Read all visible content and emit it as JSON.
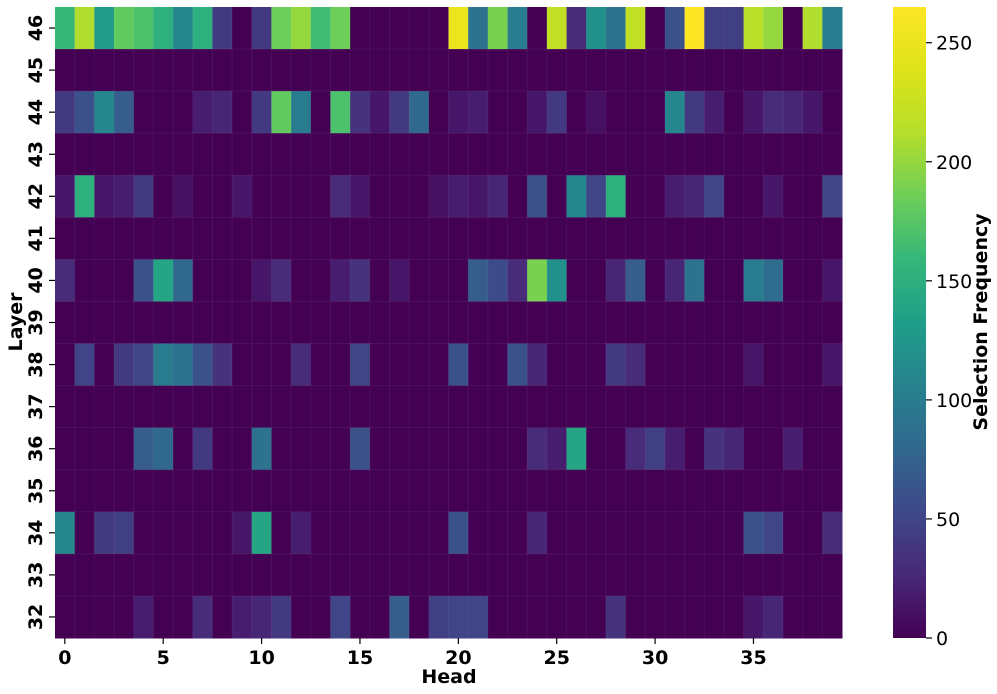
{
  "chart_data": {
    "type": "heatmap",
    "xlabel": "Head",
    "ylabel": "Layer",
    "colorbar_label": "Selection Frequency",
    "colormap": "viridis",
    "vmin": 0,
    "vmax": 265,
    "x_categories": [
      0,
      1,
      2,
      3,
      4,
      5,
      6,
      7,
      8,
      9,
      10,
      11,
      12,
      13,
      14,
      15,
      16,
      17,
      18,
      19,
      20,
      21,
      22,
      23,
      24,
      25,
      26,
      27,
      28,
      29,
      30,
      31,
      32,
      33,
      34,
      35,
      36,
      37,
      38,
      39
    ],
    "x_tick_labels": [
      "0",
      "5",
      "10",
      "15",
      "20",
      "25",
      "30",
      "35"
    ],
    "x_tick_values": [
      0,
      5,
      10,
      15,
      20,
      25,
      30,
      35
    ],
    "y_categories": [
      46,
      45,
      44,
      43,
      42,
      41,
      40,
      39,
      38,
      37,
      36,
      35,
      34,
      33,
      32
    ],
    "colorbar_ticks": [
      0,
      50,
      100,
      150,
      200,
      250
    ],
    "rows": [
      {
        "layer": 46,
        "values": [
          160,
          210,
          130,
          180,
          170,
          150,
          110,
          150,
          40,
          0,
          40,
          185,
          200,
          165,
          185,
          0,
          0,
          0,
          0,
          0,
          250,
          90,
          190,
          100,
          0,
          220,
          30,
          120,
          90,
          220,
          0,
          60,
          265,
          45,
          45,
          215,
          200,
          0,
          210,
          100
        ]
      },
      {
        "layer": 45,
        "values": [
          0,
          0,
          0,
          0,
          0,
          0,
          0,
          0,
          0,
          0,
          0,
          0,
          0,
          0,
          0,
          0,
          0,
          0,
          0,
          0,
          0,
          0,
          0,
          0,
          0,
          0,
          0,
          0,
          0,
          0,
          0,
          0,
          0,
          0,
          0,
          0,
          0,
          0,
          0,
          0
        ]
      },
      {
        "layer": 44,
        "values": [
          40,
          60,
          110,
          70,
          0,
          0,
          0,
          20,
          25,
          0,
          40,
          180,
          100,
          0,
          170,
          35,
          15,
          40,
          80,
          0,
          15,
          20,
          0,
          0,
          15,
          40,
          0,
          10,
          0,
          0,
          0,
          110,
          40,
          20,
          0,
          15,
          30,
          25,
          15,
          0
        ]
      },
      {
        "layer": 43,
        "values": [
          0,
          0,
          0,
          0,
          0,
          0,
          0,
          0,
          0,
          0,
          0,
          0,
          0,
          0,
          0,
          0,
          0,
          0,
          0,
          0,
          0,
          0,
          0,
          0,
          0,
          0,
          0,
          0,
          0,
          0,
          0,
          0,
          0,
          0,
          0,
          0,
          0,
          0,
          0,
          0
        ]
      },
      {
        "layer": 42,
        "values": [
          15,
          150,
          15,
          20,
          40,
          0,
          10,
          0,
          0,
          15,
          0,
          0,
          0,
          0,
          30,
          15,
          0,
          0,
          0,
          10,
          20,
          15,
          25,
          0,
          60,
          0,
          110,
          50,
          150,
          0,
          0,
          20,
          25,
          50,
          0,
          0,
          15,
          0,
          0,
          50
        ]
      },
      {
        "layer": 41,
        "values": [
          0,
          0,
          0,
          0,
          0,
          0,
          0,
          0,
          0,
          0,
          0,
          0,
          0,
          0,
          0,
          0,
          0,
          0,
          0,
          0,
          0,
          0,
          0,
          0,
          0,
          0,
          0,
          0,
          0,
          0,
          0,
          0,
          0,
          0,
          0,
          0,
          0,
          0,
          0,
          0
        ]
      },
      {
        "layer": 40,
        "values": [
          30,
          0,
          0,
          0,
          60,
          140,
          80,
          0,
          0,
          0,
          15,
          30,
          0,
          0,
          20,
          35,
          0,
          15,
          0,
          0,
          0,
          70,
          55,
          30,
          190,
          120,
          0,
          0,
          25,
          70,
          0,
          25,
          90,
          0,
          0,
          100,
          85,
          0,
          0,
          15
        ]
      },
      {
        "layer": 39,
        "values": [
          0,
          0,
          0,
          0,
          0,
          0,
          0,
          0,
          0,
          0,
          0,
          0,
          0,
          0,
          0,
          0,
          0,
          0,
          0,
          0,
          0,
          0,
          0,
          0,
          0,
          0,
          0,
          0,
          0,
          0,
          0,
          0,
          0,
          0,
          0,
          0,
          0,
          0,
          0,
          0
        ]
      },
      {
        "layer": 38,
        "values": [
          0,
          50,
          0,
          40,
          50,
          100,
          90,
          60,
          35,
          0,
          0,
          0,
          30,
          0,
          0,
          50,
          0,
          0,
          0,
          0,
          60,
          0,
          0,
          60,
          25,
          0,
          0,
          0,
          40,
          30,
          0,
          0,
          0,
          0,
          0,
          15,
          0,
          0,
          0,
          15
        ]
      },
      {
        "layer": 37,
        "values": [
          0,
          0,
          0,
          0,
          0,
          0,
          0,
          0,
          0,
          0,
          0,
          0,
          0,
          0,
          0,
          0,
          0,
          0,
          0,
          0,
          0,
          0,
          0,
          0,
          0,
          0,
          0,
          0,
          0,
          0,
          0,
          0,
          0,
          0,
          0,
          0,
          0,
          0,
          0,
          0
        ]
      },
      {
        "layer": 36,
        "values": [
          0,
          0,
          0,
          0,
          70,
          80,
          0,
          40,
          0,
          0,
          90,
          0,
          0,
          0,
          0,
          60,
          0,
          0,
          0,
          0,
          0,
          0,
          0,
          0,
          30,
          20,
          140,
          0,
          0,
          30,
          45,
          20,
          0,
          35,
          25,
          0,
          0,
          20,
          0,
          0
        ]
      },
      {
        "layer": 35,
        "values": [
          0,
          0,
          0,
          0,
          0,
          0,
          0,
          0,
          0,
          0,
          0,
          0,
          0,
          0,
          0,
          0,
          0,
          0,
          0,
          0,
          0,
          0,
          0,
          0,
          0,
          0,
          0,
          0,
          0,
          0,
          0,
          0,
          0,
          0,
          0,
          0,
          0,
          0,
          0,
          0
        ]
      },
      {
        "layer": 34,
        "values": [
          110,
          0,
          40,
          45,
          0,
          0,
          0,
          0,
          0,
          15,
          140,
          0,
          20,
          0,
          0,
          0,
          0,
          0,
          0,
          0,
          60,
          0,
          0,
          0,
          25,
          0,
          0,
          0,
          0,
          0,
          0,
          0,
          0,
          0,
          0,
          60,
          50,
          0,
          0,
          30
        ]
      },
      {
        "layer": 33,
        "values": [
          0,
          0,
          0,
          0,
          0,
          0,
          0,
          0,
          0,
          0,
          0,
          0,
          0,
          0,
          0,
          0,
          0,
          0,
          0,
          0,
          0,
          0,
          0,
          0,
          0,
          0,
          0,
          0,
          0,
          0,
          0,
          0,
          0,
          0,
          0,
          0,
          0,
          0,
          0,
          0
        ]
      },
      {
        "layer": 32,
        "values": [
          0,
          0,
          0,
          0,
          20,
          0,
          0,
          30,
          0,
          20,
          25,
          40,
          0,
          0,
          50,
          0,
          0,
          70,
          0,
          45,
          50,
          50,
          0,
          0,
          0,
          0,
          0,
          0,
          35,
          0,
          0,
          0,
          0,
          0,
          0,
          15,
          25,
          0,
          0,
          0
        ]
      }
    ]
  }
}
